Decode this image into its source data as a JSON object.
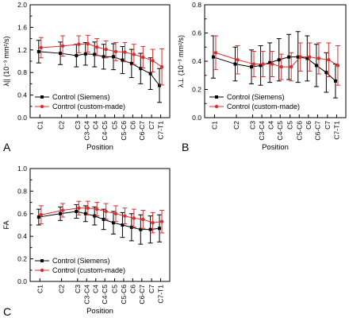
{
  "chart_data": [
    {
      "panel": "A",
      "type": "line",
      "ylabel": "λ|| (10⁻³ mm²/s)",
      "xlabel": "Position",
      "ylim": [
        0,
        2.0
      ],
      "yticks": [
        "0.0",
        "0.4",
        "0.8",
        "1.2",
        "1.6",
        "2.0"
      ],
      "categories": [
        "C1",
        "C2",
        "C3",
        "C3-C4",
        "C4",
        "C4-C5",
        "C5",
        "C5-C6",
        "C6",
        "C6-C7",
        "C7",
        "C7-T1"
      ],
      "legend_position": "bottom-left",
      "series": [
        {
          "name": "Control (Siemens)",
          "color": "#000000",
          "marker": "square",
          "points": [
            [
              0,
              1.17,
              0.2
            ],
            [
              1,
              1.14,
              0.2
            ],
            [
              2,
              1.1,
              0.2
            ],
            [
              3,
              1.13,
              0.2
            ],
            [
              4,
              1.12,
              0.22
            ],
            [
              5,
              1.08,
              0.22
            ],
            [
              6,
              1.08,
              0.23
            ],
            [
              7,
              1.02,
              0.24
            ],
            [
              8,
              0.96,
              0.25
            ],
            [
              9,
              0.87,
              0.27
            ],
            [
              10,
              0.78,
              0.28
            ],
            [
              11,
              0.57,
              0.3
            ]
          ]
        },
        {
          "name": "Control (custom-made)",
          "color": "#e32b2b",
          "marker": "circle",
          "points": [
            [
              0,
              1.24,
              0.18
            ],
            [
              1,
              1.27,
              0.18
            ],
            [
              2,
              1.3,
              0.15
            ],
            [
              3,
              1.31,
              0.15
            ],
            [
              4,
              1.25,
              0.15
            ],
            [
              5,
              1.21,
              0.15
            ],
            [
              6,
              1.17,
              0.16
            ],
            [
              7,
              1.16,
              0.17
            ],
            [
              8,
              1.12,
              0.18
            ],
            [
              9,
              1.07,
              0.19
            ],
            [
              10,
              1.01,
              0.2
            ],
            [
              11,
              0.9,
              0.32
            ]
          ]
        }
      ]
    },
    {
      "panel": "B",
      "type": "line",
      "ylabel": "λ⊥ (10⁻³ mm²/s)",
      "xlabel": "Position",
      "ylim": [
        0,
        0.8
      ],
      "yticks": [
        "0.0",
        "0.2",
        "0.4",
        "0.6",
        "0.8"
      ],
      "categories": [
        "C1",
        "C2",
        "C3",
        "C3-C4",
        "C4",
        "C4-C5",
        "C5",
        "C5-C6",
        "C6",
        "C6-C7",
        "C7",
        "C7-T1"
      ],
      "legend_position": "bottom-left",
      "series": [
        {
          "name": "Control (Siemens)",
          "color": "#000000",
          "marker": "square",
          "points": [
            [
              0,
              0.43,
              0.15
            ],
            [
              1,
              0.38,
              0.12
            ],
            [
              2,
              0.36,
              0.12
            ],
            [
              3,
              0.37,
              0.14
            ],
            [
              4,
              0.39,
              0.14
            ],
            [
              5,
              0.41,
              0.15
            ],
            [
              6,
              0.43,
              0.16
            ],
            [
              7,
              0.43,
              0.18
            ],
            [
              8,
              0.42,
              0.16
            ],
            [
              9,
              0.37,
              0.15
            ],
            [
              10,
              0.32,
              0.14
            ],
            [
              11,
              0.26,
              0.12
            ]
          ]
        },
        {
          "name": "Control (custom-made)",
          "color": "#e32b2b",
          "marker": "circle",
          "points": [
            [
              0,
              0.46,
              0.12
            ],
            [
              1,
              0.41,
              0.1
            ],
            [
              2,
              0.38,
              0.09
            ],
            [
              3,
              0.38,
              0.09
            ],
            [
              4,
              0.38,
              0.09
            ],
            [
              5,
              0.36,
              0.09
            ],
            [
              6,
              0.36,
              0.1
            ],
            [
              7,
              0.43,
              0.1
            ],
            [
              8,
              0.43,
              0.1
            ],
            [
              9,
              0.42,
              0.11
            ],
            [
              10,
              0.41,
              0.12
            ],
            [
              11,
              0.37,
              0.14
            ]
          ]
        }
      ]
    },
    {
      "panel": "C",
      "type": "line",
      "ylabel": "FA",
      "xlabel": "Position",
      "ylim": [
        0,
        1.0
      ],
      "yticks": [
        "0.0",
        "0.2",
        "0.4",
        "0.6",
        "0.8",
        "1.0"
      ],
      "categories": [
        "C1",
        "C2",
        "C3",
        "C3-C4",
        "C4",
        "C4-C5",
        "C5",
        "C5-C6",
        "C6",
        "C6-C7",
        "C7",
        "C7-T1"
      ],
      "legend_position": "bottom-left",
      "series": [
        {
          "name": "Control (Siemens)",
          "color": "#000000",
          "marker": "square",
          "points": [
            [
              0,
              0.57,
              0.07
            ],
            [
              1,
              0.6,
              0.06
            ],
            [
              2,
              0.62,
              0.06
            ],
            [
              3,
              0.6,
              0.07
            ],
            [
              4,
              0.58,
              0.08
            ],
            [
              5,
              0.55,
              0.09
            ],
            [
              6,
              0.52,
              0.1
            ],
            [
              7,
              0.5,
              0.11
            ],
            [
              8,
              0.48,
              0.12
            ],
            [
              9,
              0.46,
              0.13
            ],
            [
              10,
              0.46,
              0.12
            ],
            [
              11,
              0.47,
              0.12
            ]
          ]
        },
        {
          "name": "Control (custom-made)",
          "color": "#e32b2b",
          "marker": "circle",
          "points": [
            [
              0,
              0.59,
              0.08
            ],
            [
              1,
              0.63,
              0.06
            ],
            [
              2,
              0.65,
              0.06
            ],
            [
              3,
              0.65,
              0.06
            ],
            [
              4,
              0.64,
              0.06
            ],
            [
              5,
              0.62,
              0.07
            ],
            [
              6,
              0.6,
              0.07
            ],
            [
              7,
              0.58,
              0.07
            ],
            [
              8,
              0.56,
              0.08
            ],
            [
              9,
              0.55,
              0.08
            ],
            [
              10,
              0.52,
              0.09
            ],
            [
              11,
              0.53,
              0.1
            ]
          ]
        }
      ]
    }
  ]
}
